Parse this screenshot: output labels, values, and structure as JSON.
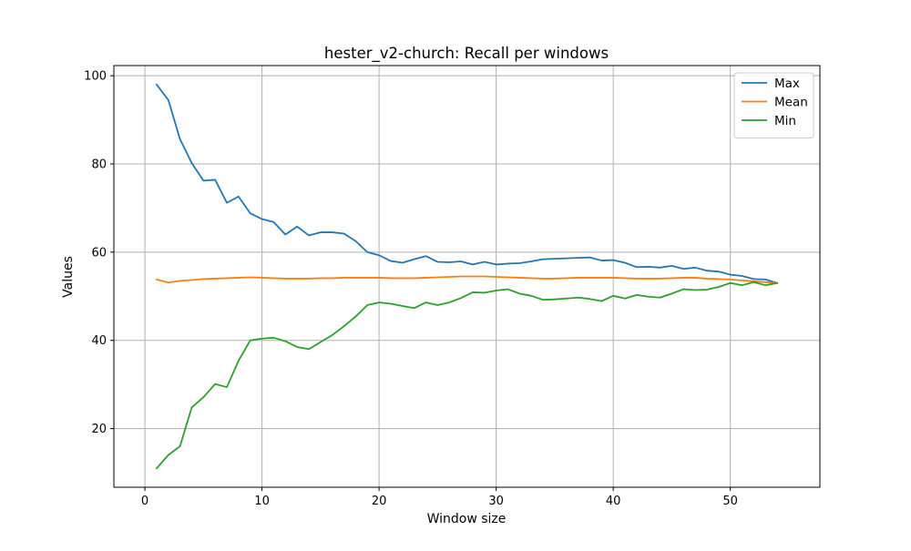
{
  "chart_data": {
    "type": "line",
    "title": "hester_v2-church: Recall per windows",
    "xlabel": "Window size",
    "ylabel": "Values",
    "xlim": [
      -2.65,
      57.65
    ],
    "ylim": [
      6.7,
      102.3
    ],
    "xticks": [
      0,
      10,
      20,
      30,
      40,
      50
    ],
    "yticks": [
      20,
      40,
      60,
      80,
      100
    ],
    "grid": true,
    "legend_position": "top-right",
    "x": [
      1,
      2,
      3,
      4,
      5,
      6,
      7,
      8,
      9,
      10,
      11,
      12,
      13,
      14,
      15,
      16,
      17,
      18,
      19,
      20,
      21,
      22,
      23,
      24,
      25,
      26,
      27,
      28,
      29,
      30,
      31,
      32,
      33,
      34,
      35,
      36,
      37,
      38,
      39,
      40,
      41,
      42,
      43,
      44,
      45,
      46,
      47,
      48,
      49,
      50,
      51,
      52,
      53,
      54
    ],
    "series": [
      {
        "name": "Max",
        "color": "#1f77b4",
        "values": [
          98.0,
          94.5,
          85.6,
          80.2,
          76.2,
          76.4,
          71.2,
          72.6,
          68.8,
          67.5,
          66.8,
          64.0,
          65.8,
          63.8,
          64.5,
          64.5,
          64.2,
          62.5,
          60.0,
          59.3,
          58.0,
          57.6,
          58.4,
          59.1,
          57.8,
          57.7,
          57.9,
          57.2,
          57.8,
          57.2,
          57.4,
          57.5,
          57.9,
          58.4,
          58.5,
          58.6,
          58.7,
          58.8,
          58.1,
          58.2,
          57.6,
          56.6,
          56.7,
          56.5,
          56.9,
          56.2,
          56.5,
          55.8,
          55.6,
          54.9,
          54.6,
          53.9,
          53.8,
          53.0
        ]
      },
      {
        "name": "Mean",
        "color": "#ff7f0e",
        "values": [
          53.8,
          53.1,
          53.5,
          53.7,
          53.9,
          54.0,
          54.1,
          54.2,
          54.3,
          54.2,
          54.1,
          54.0,
          54.0,
          54.0,
          54.1,
          54.1,
          54.2,
          54.2,
          54.2,
          54.2,
          54.1,
          54.1,
          54.1,
          54.2,
          54.3,
          54.4,
          54.5,
          54.5,
          54.5,
          54.4,
          54.3,
          54.2,
          54.1,
          54.0,
          54.0,
          54.1,
          54.2,
          54.2,
          54.2,
          54.2,
          54.1,
          54.0,
          54.0,
          54.0,
          54.1,
          54.2,
          54.2,
          54.0,
          53.9,
          53.8,
          53.6,
          53.4,
          53.2,
          53.0
        ]
      },
      {
        "name": "Min",
        "color": "#2ca02c",
        "values": [
          11.0,
          14.0,
          16.0,
          24.8,
          27.1,
          30.1,
          29.4,
          35.4,
          40.0,
          40.4,
          40.6,
          39.8,
          38.5,
          38.0,
          39.6,
          41.2,
          43.2,
          45.4,
          48.0,
          48.6,
          48.3,
          47.8,
          47.3,
          48.6,
          48.0,
          48.6,
          49.6,
          50.9,
          50.8,
          51.3,
          51.6,
          50.6,
          50.1,
          49.2,
          49.3,
          49.5,
          49.7,
          49.4,
          48.9,
          50.1,
          49.5,
          50.3,
          49.9,
          49.7,
          50.6,
          51.6,
          51.4,
          51.5,
          52.1,
          53.0,
          52.5,
          53.2,
          52.5,
          53.0
        ]
      }
    ]
  }
}
